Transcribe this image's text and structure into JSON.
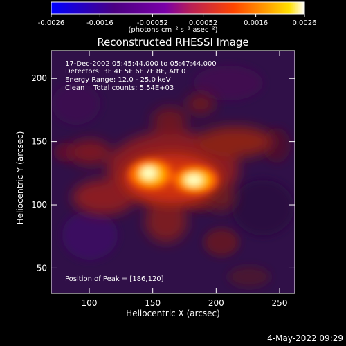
{
  "page": {
    "title": "Reconstructed RHESSI Image",
    "annotations": [
      "17-Dec-2002 05:45:44.000 to 05:47:44.000",
      "Detectors: 3F 4F 5F 6F 7F 8F, Att 0",
      "Energy Range: 12.0 - 25.0 keV",
      "Clean    Total counts: 5.54E+03"
    ],
    "peak_label": "Position of Peak = [186,120]",
    "timestamp": "4-May-2022 09:29"
  },
  "colorbar": {
    "units": "(photons cm⁻² s⁻¹ asec⁻²)",
    "range": [
      -0.0026,
      0.0026
    ],
    "ticks": [
      -0.0026,
      -0.0016,
      -0.00052,
      0.00052,
      0.0016,
      0.0026
    ],
    "tick_labels": [
      "-0.0026",
      "-0.0016",
      "-0.00052",
      "0.00052",
      "0.0016",
      "0.0026"
    ],
    "colors": [
      "#0000ff",
      "#4b0082",
      "#7a00a8",
      "#b81f56",
      "#ff4500",
      "#ff9e00",
      "#ffe000",
      "#ffffff"
    ]
  },
  "chart_data": {
    "type": "heatmap",
    "title": "Reconstructed RHESSI Image",
    "xlabel": "Heliocentric X (arcsec)",
    "ylabel": "Heliocentric Y (arcsec)",
    "xlim": [
      70,
      262
    ],
    "ylim": [
      30,
      222
    ],
    "xticks": [
      100,
      150,
      200,
      250
    ],
    "yticks": [
      50,
      100,
      150,
      200
    ],
    "value_range": [
      -0.0026,
      0.0026
    ],
    "sources": [
      {
        "x": 148,
        "y": 124,
        "value": 0.0026
      },
      {
        "x": 186,
        "y": 120,
        "value": 0.0026
      }
    ],
    "peak_position": [
      186,
      120
    ]
  }
}
